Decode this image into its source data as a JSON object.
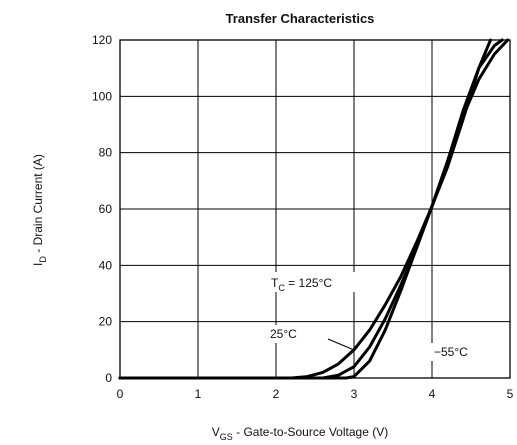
{
  "chart_data": {
    "type": "line",
    "title": "Transfer Characteristics",
    "xlabel": "Gate-to-Source Voltage (V)",
    "xlabel_symbol": "V",
    "xlabel_subscript": "GS",
    "ylabel": "Drain Current (A)",
    "ylabel_symbol": "I",
    "ylabel_subscript": "D",
    "xlim": [
      0,
      5
    ],
    "ylim": [
      0,
      120
    ],
    "xticks": [
      "0",
      "1",
      "2",
      "3",
      "4",
      "5"
    ],
    "yticks": [
      "0",
      "20",
      "40",
      "60",
      "80",
      "100",
      "120"
    ],
    "grid": true,
    "series": [
      {
        "name": "TC = 125°C",
        "x": [
          0,
          2.2,
          2.4,
          2.6,
          2.8,
          3.0,
          3.2,
          3.4,
          3.6,
          3.8,
          4.0,
          4.2,
          4.4,
          4.6,
          4.75
        ],
        "y": [
          0,
          0,
          0.5,
          2,
          5,
          10,
          17,
          26,
          36,
          48,
          61,
          75,
          92,
          110,
          120
        ]
      },
      {
        "name": "25°C",
        "x": [
          0,
          2.6,
          2.8,
          3.0,
          3.2,
          3.4,
          3.6,
          3.8,
          4.0,
          4.2,
          4.4,
          4.6,
          4.8,
          4.9
        ],
        "y": [
          0,
          0,
          1,
          4,
          11,
          21,
          33,
          46,
          61,
          77,
          95,
          110,
          118,
          120
        ]
      },
      {
        "name": "−55°C",
        "x": [
          0,
          2.9,
          3.0,
          3.2,
          3.4,
          3.6,
          3.8,
          4.0,
          4.2,
          4.4,
          4.6,
          4.8,
          4.97
        ],
        "y": [
          0,
          0,
          0.5,
          6,
          17,
          31,
          46,
          61,
          77,
          93,
          106,
          115,
          120
        ]
      }
    ],
    "annotations": [
      {
        "label_prefix": "T",
        "label_sub": "C",
        "label_suffix": " = 125°C"
      },
      {
        "text": "25°C"
      },
      {
        "text": "−55°C"
      }
    ]
  }
}
